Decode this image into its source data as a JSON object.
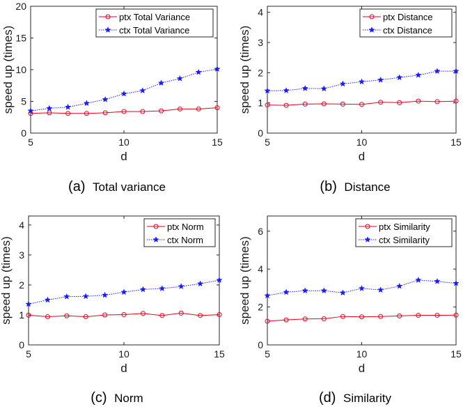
{
  "chart_data": [
    {
      "type": "line",
      "caption_letter": "(a)",
      "caption_name": "Total variance",
      "xlabel": "d",
      "ylabel": "speed up (times)",
      "xlim": [
        5,
        15
      ],
      "ylim": [
        0,
        20
      ],
      "xticks": [
        5,
        10,
        15
      ],
      "yticks": [
        0,
        5,
        10,
        15,
        20
      ],
      "legend_position": "top-right",
      "x": [
        5,
        6,
        7,
        8,
        9,
        10,
        11,
        12,
        13,
        14,
        15
      ],
      "series": [
        {
          "name": "ptx Total Variance",
          "color": "#e8001c",
          "marker": "circle",
          "line": "solid",
          "values": [
            3.1,
            3.2,
            3.1,
            3.1,
            3.2,
            3.4,
            3.4,
            3.5,
            3.8,
            3.8,
            4.0
          ]
        },
        {
          "name": "ctx Total Variance",
          "color": "#1a1aff",
          "marker": "star",
          "line": "dotted",
          "values": [
            3.5,
            3.9,
            4.1,
            4.7,
            5.3,
            6.2,
            6.7,
            7.9,
            8.6,
            9.6,
            10.1
          ]
        }
      ]
    },
    {
      "type": "line",
      "caption_letter": "(b)",
      "caption_name": "Distance",
      "xlabel": "d",
      "ylabel": "speed up (times)",
      "xlim": [
        5,
        15
      ],
      "ylim": [
        0,
        4.2
      ],
      "xticks": [
        5,
        10,
        15
      ],
      "yticks": [
        0,
        1,
        2,
        3,
        4
      ],
      "legend_position": "top-right",
      "x": [
        5,
        6,
        7,
        8,
        9,
        10,
        11,
        12,
        13,
        14,
        15
      ],
      "series": [
        {
          "name": "ptx Distance",
          "color": "#e8001c",
          "marker": "circle",
          "line": "solid",
          "values": [
            0.93,
            0.92,
            0.96,
            0.97,
            0.96,
            0.95,
            1.02,
            1.01,
            1.06,
            1.04,
            1.06
          ]
        },
        {
          "name": "ctx Distance",
          "color": "#1a1aff",
          "marker": "star",
          "line": "dotted",
          "values": [
            1.4,
            1.41,
            1.48,
            1.47,
            1.63,
            1.7,
            1.76,
            1.84,
            1.92,
            2.05,
            2.05
          ]
        }
      ]
    },
    {
      "type": "line",
      "caption_letter": "(c)",
      "caption_name": "Norm",
      "xlabel": "d",
      "ylabel": "speed up (times)",
      "xlim": [
        5,
        15
      ],
      "ylim": [
        0,
        4.3
      ],
      "xticks": [
        5,
        10,
        15
      ],
      "yticks": [
        0,
        1,
        2,
        3,
        4
      ],
      "legend_position": "top-right",
      "x": [
        5,
        6,
        7,
        8,
        9,
        10,
        11,
        12,
        13,
        14,
        15
      ],
      "series": [
        {
          "name": "ptx Norm",
          "color": "#e8001c",
          "marker": "circle",
          "line": "solid",
          "values": [
            0.99,
            0.94,
            0.97,
            0.94,
            1.0,
            1.01,
            1.05,
            0.98,
            1.06,
            0.98,
            1.01
          ]
        },
        {
          "name": "ctx Norm",
          "color": "#1a1aff",
          "marker": "star",
          "line": "dotted",
          "values": [
            1.36,
            1.5,
            1.61,
            1.62,
            1.66,
            1.76,
            1.85,
            1.88,
            1.95,
            2.04,
            2.16
          ]
        }
      ]
    },
    {
      "type": "line",
      "caption_letter": "(d)",
      "caption_name": "Similarity",
      "xlabel": "d",
      "ylabel": "speed up (times)",
      "xlim": [
        5,
        15
      ],
      "ylim": [
        0,
        6.8
      ],
      "xticks": [
        5,
        10,
        15
      ],
      "yticks": [
        0,
        2,
        4,
        6
      ],
      "legend_position": "top-right",
      "x": [
        5,
        6,
        7,
        8,
        9,
        10,
        11,
        12,
        13,
        14,
        15
      ],
      "series": [
        {
          "name": "ptx Similarity",
          "color": "#e8001c",
          "marker": "circle",
          "line": "solid",
          "values": [
            1.25,
            1.32,
            1.37,
            1.38,
            1.5,
            1.48,
            1.5,
            1.53,
            1.56,
            1.56,
            1.57
          ]
        },
        {
          "name": "ctx Similarity",
          "color": "#1a1aff",
          "marker": "star",
          "line": "dotted",
          "values": [
            2.6,
            2.78,
            2.86,
            2.86,
            2.75,
            2.98,
            2.9,
            3.1,
            3.42,
            3.35,
            3.25
          ]
        }
      ]
    }
  ]
}
